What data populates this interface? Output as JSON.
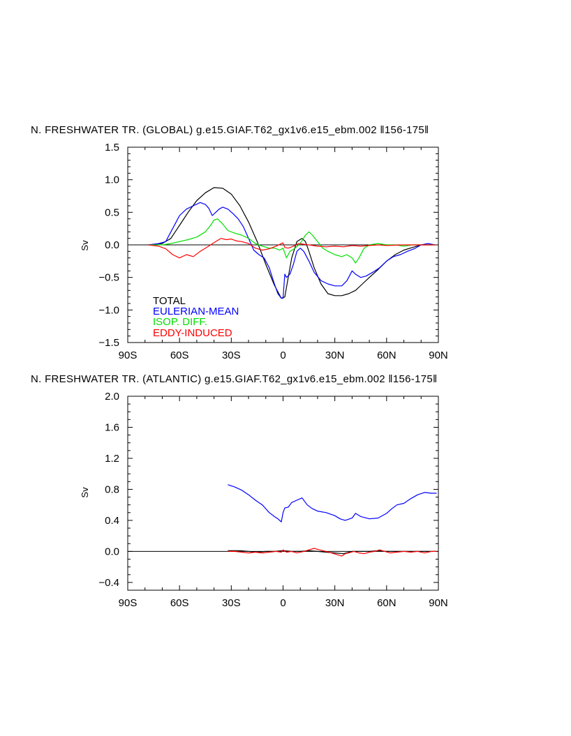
{
  "chart_data": [
    {
      "type": "line",
      "title": "N. FRESHWATER TR. (GLOBAL) g.e15.GIAF.T62_gx1v6.e15_ebm.002 ‖156-175‖",
      "xlabel": "",
      "ylabel": "Sv",
      "xlim": [
        -90,
        90
      ],
      "ylim": [
        -1.5,
        1.5
      ],
      "xticks": [
        -90,
        -60,
        -30,
        0,
        30,
        60,
        90
      ],
      "xtick_labels": [
        "90S",
        "60S",
        "30S",
        "0",
        "30N",
        "60N",
        "90N"
      ],
      "yticks": [
        -1.5,
        -1.0,
        -0.5,
        0.0,
        0.5,
        1.0,
        1.5
      ],
      "ytick_labels": [
        "−1.5",
        "−1.0",
        "−0.5",
        "0.0",
        "0.5",
        "1.0",
        "1.5"
      ],
      "zero_line": true,
      "legend_position": "bottom-left",
      "series": [
        {
          "name": "TOTAL",
          "color": "#000000",
          "x": [
            -78,
            -70,
            -65,
            -60,
            -55,
            -50,
            -45,
            -40,
            -35,
            -30,
            -25,
            -20,
            -15,
            -10,
            -5,
            -1,
            1,
            3,
            5,
            8,
            11,
            13,
            15,
            18,
            22,
            26,
            30,
            34,
            38,
            42,
            46,
            50,
            55,
            60,
            65,
            70,
            75,
            80,
            85,
            88
          ],
          "y": [
            0,
            0.02,
            0.1,
            0.3,
            0.5,
            0.68,
            0.8,
            0.88,
            0.87,
            0.78,
            0.6,
            0.35,
            0.05,
            -0.3,
            -0.62,
            -0.82,
            -0.8,
            -0.5,
            -0.2,
            0.05,
            0.1,
            0.05,
            -0.1,
            -0.35,
            -0.6,
            -0.75,
            -0.78,
            -0.78,
            -0.75,
            -0.7,
            -0.6,
            -0.5,
            -0.38,
            -0.25,
            -0.15,
            -0.08,
            -0.04,
            0,
            0,
            0
          ]
        },
        {
          "name": "EULERIAN-MEAN",
          "color": "#0000ff",
          "x": [
            -78,
            -72,
            -68,
            -64,
            -60,
            -56,
            -52,
            -48,
            -45,
            -43,
            -41,
            -39,
            -37,
            -35,
            -32,
            -29,
            -26,
            -23,
            -20,
            -17,
            -14,
            -11,
            -8,
            -5,
            -3,
            -1,
            0,
            1,
            2,
            4,
            6,
            8,
            10,
            12,
            15,
            18,
            22,
            26,
            30,
            34,
            37,
            40,
            42,
            45,
            48,
            52,
            56,
            60,
            64,
            68,
            72,
            76,
            80,
            84,
            88
          ],
          "y": [
            0,
            0.02,
            0.05,
            0.25,
            0.45,
            0.55,
            0.6,
            0.65,
            0.62,
            0.56,
            0.45,
            0.5,
            0.55,
            0.58,
            0.55,
            0.48,
            0.4,
            0.28,
            0.1,
            -0.08,
            -0.15,
            -0.2,
            -0.35,
            -0.6,
            -0.75,
            -0.82,
            -0.82,
            -0.45,
            -0.5,
            -0.45,
            -0.3,
            -0.1,
            -0.05,
            -0.1,
            -0.25,
            -0.42,
            -0.55,
            -0.6,
            -0.63,
            -0.63,
            -0.55,
            -0.4,
            -0.45,
            -0.5,
            -0.48,
            -0.42,
            -0.35,
            -0.25,
            -0.18,
            -0.15,
            -0.1,
            -0.06,
            0,
            0.02,
            0
          ]
        },
        {
          "name": "ISOP. DIFF.",
          "color": "#00e000",
          "x": [
            -78,
            -70,
            -65,
            -60,
            -55,
            -50,
            -45,
            -42,
            -40,
            -38,
            -35,
            -32,
            -28,
            -24,
            -20,
            -16,
            -12,
            -8,
            -5,
            -2,
            0,
            2,
            4,
            7,
            10,
            13,
            15,
            17,
            20,
            23,
            26,
            30,
            34,
            37,
            40,
            42,
            44,
            47,
            50,
            55,
            60,
            65,
            70,
            75,
            80,
            85,
            88
          ],
          "y": [
            0,
            0,
            0.02,
            0.05,
            0.08,
            0.12,
            0.2,
            0.3,
            0.38,
            0.4,
            0.32,
            0.22,
            0.18,
            0.15,
            0.1,
            0.02,
            -0.02,
            -0.05,
            -0.05,
            -0.08,
            -0.05,
            -0.2,
            -0.1,
            -0.05,
            0.02,
            0.15,
            0.2,
            0.15,
            0.05,
            -0.05,
            -0.1,
            -0.15,
            -0.18,
            -0.15,
            -0.2,
            -0.28,
            -0.2,
            -0.05,
            0,
            0.02,
            0,
            0,
            -0.02,
            0,
            0,
            0,
            0
          ]
        },
        {
          "name": "EDDY-INDUCED",
          "color": "#ff0000",
          "x": [
            -78,
            -72,
            -68,
            -64,
            -60,
            -56,
            -52,
            -48,
            -45,
            -42,
            -39,
            -36,
            -33,
            -30,
            -27,
            -24,
            -20,
            -16,
            -12,
            -8,
            -4,
            -1,
            0,
            1,
            3,
            6,
            9,
            12,
            15,
            20,
            25,
            30,
            35,
            40,
            45,
            50,
            55,
            60,
            70,
            80,
            88
          ],
          "y": [
            0,
            -0.02,
            -0.06,
            -0.15,
            -0.2,
            -0.15,
            -0.18,
            -0.1,
            -0.05,
            0,
            0.05,
            0.1,
            0.08,
            0.09,
            0.06,
            0.05,
            0.02,
            -0.05,
            -0.08,
            -0.06,
            -0.02,
            0.02,
            0.03,
            -0.04,
            -0.05,
            -0.02,
            0.02,
            0.01,
            0,
            -0.02,
            -0.03,
            -0.02,
            -0.03,
            -0.01,
            -0.02,
            -0.01,
            0,
            -0.01,
            0,
            0,
            0
          ]
        }
      ]
    },
    {
      "type": "line",
      "title": "N. FRESHWATER TR. (ATLANTIC) g.e15.GIAF.T62_gx1v6.e15_ebm.002 ‖156-175‖",
      "xlabel": "",
      "ylabel": "Sv",
      "xlim": [
        -90,
        90
      ],
      "ylim": [
        -0.5,
        2.0
      ],
      "xticks": [
        -90,
        -60,
        -30,
        0,
        30,
        60,
        90
      ],
      "xtick_labels": [
        "90S",
        "60S",
        "30S",
        "0",
        "30N",
        "60N",
        "90N"
      ],
      "yticks": [
        -0.4,
        0.0,
        0.4,
        0.8,
        1.2,
        1.6,
        2.0
      ],
      "ytick_labels": [
        "−0.4",
        "0.0",
        "0.4",
        "0.8",
        "1.2",
        "1.6",
        "2.0"
      ],
      "zero_line": true,
      "series": [
        {
          "name": "EULERIAN-MEAN",
          "color": "#0000ff",
          "x": [
            -32,
            -28,
            -24,
            -20,
            -16,
            -12,
            -8,
            -5,
            -3,
            -1,
            0,
            1,
            3,
            5,
            8,
            11,
            14,
            17,
            20,
            25,
            30,
            33,
            36,
            40,
            42,
            45,
            50,
            55,
            60,
            63,
            66,
            70,
            74,
            78,
            82,
            86,
            89
          ],
          "y": [
            0.86,
            0.83,
            0.79,
            0.73,
            0.66,
            0.6,
            0.5,
            0.45,
            0.42,
            0.38,
            0.5,
            0.56,
            0.57,
            0.63,
            0.66,
            0.69,
            0.6,
            0.55,
            0.52,
            0.5,
            0.46,
            0.42,
            0.4,
            0.43,
            0.49,
            0.45,
            0.42,
            0.43,
            0.49,
            0.55,
            0.6,
            0.62,
            0.68,
            0.73,
            0.76,
            0.75,
            0.75
          ]
        },
        {
          "name": "TOTAL",
          "color": "#000000",
          "x": [
            -32,
            -25,
            -20,
            -15,
            -10,
            -5,
            0,
            5,
            10,
            15,
            20,
            25,
            30,
            35,
            40,
            45,
            50,
            55,
            60,
            65,
            70,
            75,
            80,
            85,
            89
          ],
          "y": [
            0.01,
            0.01,
            0,
            -0.01,
            0,
            0,
            0.01,
            0,
            0,
            0.01,
            0,
            -0.01,
            -0.02,
            -0.03,
            0,
            0,
            0,
            0.01,
            0,
            0,
            0,
            0,
            0,
            0,
            0
          ]
        },
        {
          "name": "EDDY-INDUCED",
          "color": "#ff0000",
          "x": [
            -32,
            -28,
            -24,
            -20,
            -16,
            -12,
            -8,
            -4,
            -1,
            0,
            2,
            5,
            8,
            12,
            15,
            18,
            21,
            25,
            28,
            31,
            34,
            36,
            38,
            41,
            44,
            47,
            50,
            53,
            56,
            59,
            62,
            66,
            70,
            74,
            78,
            82,
            86,
            89
          ],
          "y": [
            0,
            0,
            -0.01,
            -0.02,
            -0.01,
            -0.02,
            -0.01,
            0,
            -0.01,
            0.02,
            -0.01,
            0,
            -0.02,
            0,
            0.02,
            0.04,
            0.02,
            0,
            -0.02,
            -0.04,
            -0.06,
            -0.03,
            -0.02,
            0,
            -0.02,
            -0.03,
            -0.01,
            0,
            0.02,
            0,
            -0.02,
            -0.01,
            0,
            -0.01,
            0,
            -0.02,
            0,
            0
          ]
        }
      ]
    }
  ]
}
